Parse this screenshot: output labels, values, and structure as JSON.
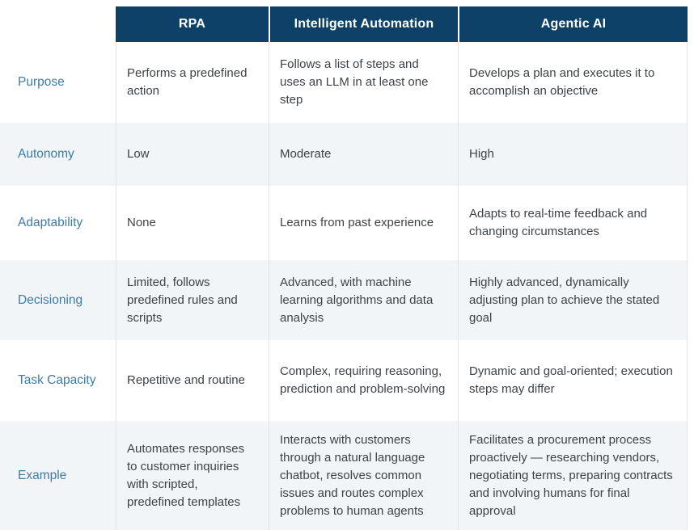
{
  "table": {
    "columns": [
      "RPA",
      "Intelligent Automation",
      "Agentic AI"
    ],
    "rows": [
      {
        "label": "Purpose",
        "cells": [
          "Performs a predefined action",
          "Follows a list of steps and uses an LLM in at least one step",
          "Develops a plan and executes it to accomplish an objective"
        ]
      },
      {
        "label": "Autonomy",
        "cells": [
          "Low",
          "Moderate",
          "High"
        ]
      },
      {
        "label": "Adaptability",
        "cells": [
          "None",
          "Learns from past experience",
          "Adapts to real-time feedback and changing circumstances"
        ]
      },
      {
        "label": "Decisioning",
        "cells": [
          "Limited, follows predefined rules and scripts",
          "Advanced, with machine learning algorithms and data analysis",
          "Highly advanced, dynamically adjusting plan to achieve the stated goal"
        ]
      },
      {
        "label": "Task Capacity",
        "cells": [
          "Repetitive and routine",
          "Complex, requiring reasoning, prediction and problem-solving",
          "Dynamic and goal-oriented; execution steps may differ"
        ]
      },
      {
        "label": "Example",
        "cells": [
          "Automates responses to customer inquiries with scripted, predefined templates",
          "Interacts with customers through a natural language chatbot, resolves common issues and routes complex problems to human agents",
          "Facilitates a procurement process proactively — researching vendors, negotiating terms, preparing contracts and involving humans for final approval"
        ]
      }
    ],
    "colors": {
      "header_bg": "#0d4168",
      "header_text": "#ffffff",
      "stripe_bg": "#f1f5f8",
      "label_text": "#3d7ca6",
      "body_text": "#3e4247",
      "border": "#e0e4e8"
    }
  }
}
